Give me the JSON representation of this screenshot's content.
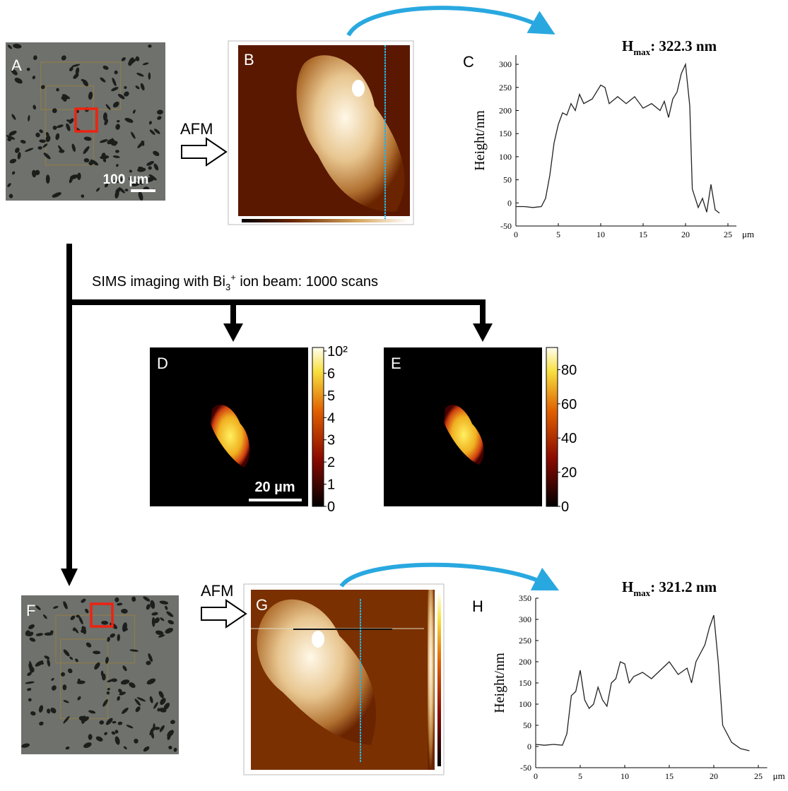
{
  "panels": {
    "A": {
      "letter": "A",
      "scale": "100 µm"
    },
    "B": {
      "letter": "B"
    },
    "C": {
      "letter": "C"
    },
    "D": {
      "letter": "D",
      "scale": "20 µm",
      "colorbar": [
        "0",
        "1",
        "2",
        "3",
        "4",
        "5",
        "6",
        "10²"
      ]
    },
    "E": {
      "letter": "E",
      "colorbar": [
        0,
        20,
        40,
        60,
        80
      ]
    },
    "F": {
      "letter": "F"
    },
    "G": {
      "letter": "G"
    },
    "H": {
      "letter": "H"
    }
  },
  "arrows": {
    "afm_top": "AFM",
    "afm_bottom": "AFM"
  },
  "sims": {
    "text1": "SIMS imaging with Bi",
    "sub": "3",
    "sup": "+",
    "text2": " ion beam: 1000 scans"
  },
  "chart_data": [
    {
      "type": "line",
      "title_main": "H",
      "title_sub": "max",
      "title_rest": ": 322.3 nm",
      "ylabel": "Height/nm",
      "xunit": "μm",
      "color": "#222",
      "x": [
        0,
        1,
        2,
        3,
        3.5,
        4,
        4.5,
        5,
        5.5,
        6,
        6.5,
        7,
        7.5,
        8,
        9,
        10,
        10.5,
        11,
        12,
        13,
        14,
        15,
        16,
        17,
        17.5,
        18,
        18.5,
        19,
        19.5,
        20,
        20.5,
        20.8,
        21.5,
        22,
        22.5,
        23,
        23.5,
        24
      ],
      "values": [
        -8,
        -8,
        -10,
        -8,
        10,
        60,
        130,
        170,
        195,
        190,
        215,
        200,
        235,
        215,
        225,
        255,
        250,
        215,
        230,
        215,
        230,
        205,
        215,
        200,
        220,
        185,
        225,
        240,
        280,
        300,
        210,
        30,
        -10,
        10,
        -20,
        40,
        -15,
        -22
      ],
      "xlim": [
        0,
        26
      ],
      "ylim": [
        -50,
        320
      ],
      "xticks": [
        0,
        5,
        10,
        15,
        20,
        25
      ],
      "yticks": [
        -50,
        0,
        50,
        100,
        150,
        200,
        250,
        300
      ]
    },
    {
      "type": "line",
      "title_main": "H",
      "title_sub": "max",
      "title_rest": ": 321.2 nm",
      "ylabel": "Height/nm",
      "xunit": "μm",
      "color": "#222",
      "x": [
        0,
        1,
        2,
        3,
        3.5,
        4,
        4.5,
        5,
        5.5,
        6,
        6.5,
        7,
        7.5,
        8,
        8.5,
        9,
        9.5,
        10,
        10.5,
        11,
        12,
        13,
        14,
        15,
        16,
        17,
        17.5,
        18,
        19,
        19.5,
        20,
        20.5,
        21,
        22,
        23,
        24
      ],
      "values": [
        5,
        3,
        5,
        3,
        30,
        120,
        130,
        180,
        110,
        90,
        100,
        140,
        110,
        95,
        150,
        160,
        200,
        195,
        150,
        165,
        175,
        160,
        180,
        200,
        170,
        185,
        150,
        200,
        240,
        280,
        310,
        200,
        50,
        10,
        -5,
        -10
      ],
      "xlim": [
        0,
        26
      ],
      "ylim": [
        -50,
        350
      ],
      "xticks": [
        0,
        5,
        10,
        15,
        20,
        25
      ],
      "yticks": [
        -50,
        0,
        50,
        100,
        150,
        200,
        250,
        300,
        350
      ]
    }
  ]
}
